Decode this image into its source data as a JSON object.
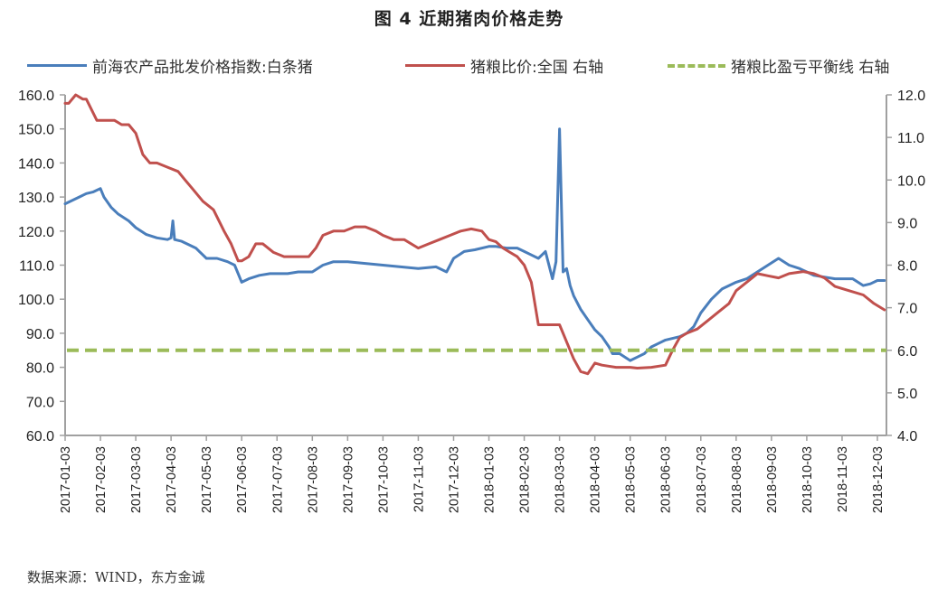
{
  "title": "图 4    近期猪肉价格走势",
  "legend": [
    {
      "label": "前海农产品批发价格指数:白条猪",
      "color": "#4a7ebb",
      "style": "solid"
    },
    {
      "label": "猪粮比价:全国 右轴",
      "color": "#c0504d",
      "style": "solid"
    },
    {
      "label": "猪粮比盈亏平衡线 右轴",
      "color": "#9bbb59",
      "style": "dashed"
    }
  ],
  "source": "数据来源：WIND，东方金诚",
  "colors": {
    "blue": "#4a7ebb",
    "red": "#c0504d",
    "green": "#9bbb59",
    "axis": "#a0a0a0"
  },
  "chart_data": {
    "type": "line",
    "title": "图 4 近期猪肉价格走势",
    "xlabel": "",
    "ylabel_left": "",
    "ylabel_right": "",
    "grid": false,
    "legend_position": "top",
    "ylim_left": [
      60,
      160
    ],
    "yticks_left": [
      "60.0",
      "70.0",
      "80.0",
      "90.0",
      "100.0",
      "110.0",
      "120.0",
      "130.0",
      "140.0",
      "150.0",
      "160.0"
    ],
    "ylim_right": [
      4,
      12
    ],
    "yticks_right": [
      "4.0",
      "5.0",
      "6.0",
      "7.0",
      "8.0",
      "9.0",
      "10.0",
      "11.0",
      "12.0"
    ],
    "x_ticks": [
      "2017-01-03",
      "2017-02-03",
      "2017-03-03",
      "2017-04-03",
      "2017-05-03",
      "2017-06-03",
      "2017-07-03",
      "2017-08-03",
      "2017-09-03",
      "2017-10-03",
      "2017-11-03",
      "2017-12-03",
      "2018-01-03",
      "2018-02-03",
      "2018-03-03",
      "2018-04-03",
      "2018-05-03",
      "2018-06-03",
      "2018-07-03",
      "2018-08-03",
      "2018-09-03",
      "2018-10-03",
      "2018-11-03",
      "2018-12-03"
    ],
    "series": [
      {
        "name": "前海农产品批发价格指数:白条猪",
        "axis": "left",
        "color": "#4a7ebb",
        "x_index": [
          0,
          0.2,
          0.4,
          0.6,
          0.8,
          1.0,
          1.1,
          1.3,
          1.5,
          1.8,
          2.0,
          2.3,
          2.6,
          2.9,
          3.0,
          3.05,
          3.1,
          3.3,
          3.5,
          3.7,
          3.8,
          3.9,
          4.0,
          4.3,
          4.6,
          4.8,
          5.0,
          5.2,
          5.5,
          5.8,
          6.0,
          6.3,
          6.6,
          7.0,
          7.3,
          7.6,
          8.0,
          8.5,
          9.0,
          9.5,
          10.0,
          10.5,
          10.8,
          11.0,
          11.3,
          11.6,
          12.0,
          12.2,
          12.5,
          12.8,
          13.0,
          13.2,
          13.4,
          13.6,
          13.8,
          13.9,
          14.0,
          14.1,
          14.2,
          14.3,
          14.4,
          14.6,
          14.8,
          15.0,
          15.2,
          15.4,
          15.5,
          15.7,
          16.0,
          16.2,
          16.4,
          16.6,
          16.8,
          17.0,
          17.2,
          17.4,
          17.6,
          17.8,
          18.0,
          18.3,
          18.6,
          19.0,
          19.3,
          19.6,
          19.9,
          20.2,
          20.5,
          20.8,
          21.0,
          21.2,
          21.5,
          21.8,
          22.0,
          22.3,
          22.6,
          22.8,
          23.0,
          23.2
        ],
        "values": [
          128,
          129,
          130,
          131,
          131.5,
          132.5,
          130,
          127,
          125,
          123,
          121,
          119,
          118,
          117.5,
          118,
          123,
          117.5,
          117,
          116,
          115,
          114,
          113,
          112,
          112,
          111,
          110,
          105,
          106,
          107,
          107.5,
          107.5,
          107.5,
          108,
          108,
          110,
          111,
          111,
          110.5,
          110,
          109.5,
          109,
          109.5,
          108,
          112,
          114,
          114.5,
          115.5,
          115.5,
          115,
          115,
          114,
          113,
          112,
          114,
          106,
          111,
          150,
          108,
          109,
          104,
          101,
          97,
          94,
          91,
          89,
          86,
          84,
          84,
          82,
          83,
          84,
          86,
          87,
          88,
          88.5,
          89,
          90,
          92,
          96,
          100,
          103,
          105,
          106,
          108,
          110,
          112,
          110,
          109,
          108,
          107,
          106.5,
          106,
          106,
          106,
          104,
          104.5,
          105.5,
          105.5
        ]
      },
      {
        "name": "猪粮比价:全国 右轴",
        "axis": "right",
        "color": "#c0504d",
        "x_index": [
          0,
          0.1,
          0.3,
          0.5,
          0.6,
          0.9,
          1.0,
          1.4,
          1.6,
          1.8,
          2.0,
          2.2,
          2.4,
          2.6,
          2.9,
          3.2,
          3.4,
          3.6,
          3.9,
          4.2,
          4.5,
          4.7,
          4.9,
          5.0,
          5.2,
          5.4,
          5.6,
          5.9,
          6.2,
          6.5,
          6.9,
          7.1,
          7.3,
          7.6,
          7.9,
          8.2,
          8.5,
          8.8,
          9.0,
          9.3,
          9.6,
          10.0,
          10.3,
          10.6,
          10.9,
          11.2,
          11.5,
          11.8,
          12.0,
          12.2,
          12.4,
          12.6,
          12.8,
          13.0,
          13.2,
          13.4,
          13.5,
          14.0,
          14.3,
          14.4,
          14.6,
          14.8,
          15.0,
          15.2,
          15.6,
          16.0,
          16.2,
          16.6,
          17.0,
          17.2,
          17.4,
          17.6,
          17.9,
          18.2,
          18.5,
          18.8,
          19.0,
          19.3,
          19.6,
          19.9,
          20.2,
          20.5,
          20.9,
          21.2,
          21.5,
          21.8,
          22.2,
          22.6,
          22.9,
          23.2
        ],
        "values": [
          11.8,
          11.8,
          12.0,
          11.9,
          11.9,
          11.4,
          11.4,
          11.4,
          11.3,
          11.3,
          11.1,
          10.6,
          10.4,
          10.4,
          10.3,
          10.2,
          10.0,
          9.8,
          9.5,
          9.3,
          8.8,
          8.5,
          8.1,
          8.1,
          8.2,
          8.5,
          8.5,
          8.3,
          8.2,
          8.2,
          8.2,
          8.4,
          8.7,
          8.8,
          8.8,
          8.9,
          8.9,
          8.8,
          8.7,
          8.6,
          8.6,
          8.4,
          8.5,
          8.6,
          8.7,
          8.8,
          8.85,
          8.8,
          8.6,
          8.55,
          8.4,
          8.3,
          8.2,
          8.0,
          7.6,
          6.6,
          6.6,
          6.6,
          6.0,
          5.8,
          5.5,
          5.45,
          5.7,
          5.65,
          5.6,
          5.6,
          5.58,
          5.6,
          5.65,
          6.0,
          6.3,
          6.4,
          6.5,
          6.7,
          6.9,
          7.1,
          7.4,
          7.6,
          7.8,
          7.75,
          7.7,
          7.8,
          7.85,
          7.8,
          7.7,
          7.5,
          7.4,
          7.3,
          7.1,
          6.95
        ]
      },
      {
        "name": "猪粮比盈亏平衡线 右轴",
        "axis": "right",
        "color": "#9bbb59",
        "style": "dashed",
        "constant": 6.0
      }
    ]
  }
}
